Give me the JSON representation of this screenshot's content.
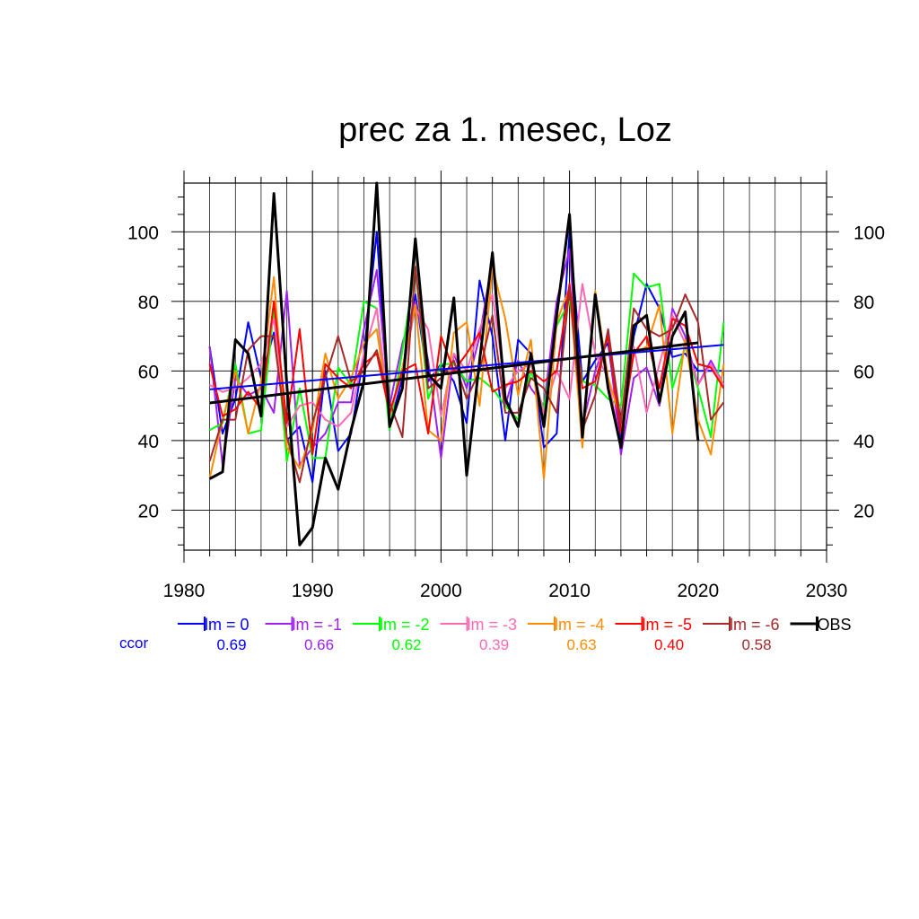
{
  "chart_data": {
    "type": "line",
    "title": "prec za 1. mesec, Loz",
    "xlabel": "",
    "ylabel": "",
    "xlim": [
      1980,
      2030
    ],
    "ylim": [
      8.5,
      114
    ],
    "x_ticks": [
      1980,
      1990,
      2000,
      2010,
      2020,
      2030
    ],
    "y_ticks": [
      20,
      40,
      60,
      80,
      100
    ],
    "grid": true,
    "legend_position": "bottom",
    "x": [
      1982,
      1983,
      1984,
      1985,
      1986,
      1987,
      1988,
      1989,
      1990,
      1991,
      1992,
      1993,
      1994,
      1995,
      1996,
      1997,
      1998,
      1999,
      2000,
      2001,
      2002,
      2003,
      2004,
      2005,
      2006,
      2007,
      2008,
      2009,
      2010,
      2011,
      2012,
      2013,
      2014,
      2015,
      2016,
      2017,
      2018,
      2019,
      2020,
      2021,
      2022
    ],
    "series": [
      {
        "name": "lm = 0",
        "color": "#0000ff",
        "corr": "0.69",
        "values": [
          67,
          42,
          52,
          74,
          58,
          71,
          40,
          44,
          28,
          60,
          37,
          42,
          65,
          100,
          44,
          58,
          82,
          57,
          62,
          57,
          45,
          86,
          70,
          40,
          69,
          65,
          38,
          42,
          100,
          57,
          63,
          68,
          40,
          70,
          85,
          78,
          64,
          65,
          60,
          60,
          60
        ],
        "trend": [
          54.7,
          67.5
        ]
      },
      {
        "name": "lm = -1",
        "color": "#a020f0",
        "corr": "0.66",
        "values": [
          67,
          33,
          58,
          53,
          55,
          48,
          83,
          33,
          38,
          42,
          51,
          51,
          72,
          89,
          50,
          68,
          80,
          63,
          35,
          65,
          55,
          70,
          92,
          50,
          63,
          55,
          50,
          80,
          95,
          44,
          60,
          70,
          36,
          58,
          61,
          50,
          78,
          70,
          56,
          63,
          56
        ],
        "trend": null
      },
      {
        "name": "lm = -2",
        "color": "#00ff00",
        "corr": "0.62",
        "values": [
          43,
          45,
          62,
          42,
          43,
          78,
          34,
          55,
          35,
          35,
          61,
          56,
          80,
          78,
          43,
          66,
          90,
          52,
          62,
          62,
          57,
          58,
          55,
          50,
          46,
          60,
          49,
          73,
          80,
          57,
          56,
          52,
          50,
          88,
          84,
          85,
          55,
          67,
          55,
          41,
          74
        ],
        "trend": null
      },
      {
        "name": "lm = -3",
        "color": "#ff69b4",
        "corr": "0.39",
        "values": [
          56,
          54,
          55,
          58,
          62,
          75,
          44,
          50,
          51,
          46,
          44,
          48,
          65,
          78,
          47,
          60,
          78,
          72,
          47,
          65,
          60,
          72,
          82,
          55,
          60,
          62,
          48,
          60,
          52,
          85,
          65,
          58,
          38,
          67,
          48,
          62,
          76,
          68,
          56,
          62,
          56
        ],
        "trend": null
      },
      {
        "name": "lm = -4",
        "color": "#ff8c00",
        "corr": "0.63",
        "values": [
          29,
          46,
          60,
          42,
          57,
          87,
          38,
          32,
          43,
          65,
          52,
          58,
          68,
          72,
          47,
          61,
          79,
          43,
          40,
          71,
          74,
          50,
          90,
          75,
          53,
          69,
          29,
          74,
          84,
          38,
          83,
          58,
          46,
          65,
          67,
          79,
          42,
          69,
          46,
          36,
          62
        ],
        "trend": null
      },
      {
        "name": "lm = -5",
        "color": "#ff0000",
        "corr": "0.40",
        "values": [
          62,
          47,
          49,
          54,
          49,
          80,
          45,
          72,
          36,
          62,
          58,
          55,
          62,
          65,
          48,
          60,
          62,
          42,
          70,
          60,
          65,
          71,
          54,
          56,
          57,
          60,
          57,
          60,
          85,
          55,
          57,
          70,
          42,
          65,
          70,
          55,
          75,
          73,
          62,
          61,
          55
        ],
        "trend": null
      },
      {
        "name": "lm = -6",
        "color": "#a52a2a",
        "corr": "0.58",
        "values": [
          34,
          46,
          46,
          66,
          70,
          70,
          41,
          28,
          45,
          58,
          70,
          57,
          60,
          66,
          51,
          41,
          90,
          55,
          58,
          63,
          52,
          60,
          76,
          48,
          48,
          58,
          55,
          48,
          84,
          43,
          53,
          72,
          45,
          78,
          72,
          70,
          72,
          82,
          74,
          46,
          51
        ],
        "trend": null
      },
      {
        "name": "OBS",
        "color": "#000000",
        "corr": "",
        "values": [
          29,
          31,
          69,
          65,
          47,
          111,
          56,
          10,
          15,
          35,
          26,
          43,
          57,
          114,
          44,
          55,
          98,
          59,
          55,
          81,
          30,
          63,
          94,
          52,
          44,
          65,
          44,
          76,
          105,
          41,
          82,
          55,
          38,
          73,
          76,
          51,
          70,
          77,
          40,
          null,
          null
        ],
        "trend": [
          50.8,
          68.1
        ]
      }
    ],
    "ccor_label": "ccor"
  }
}
